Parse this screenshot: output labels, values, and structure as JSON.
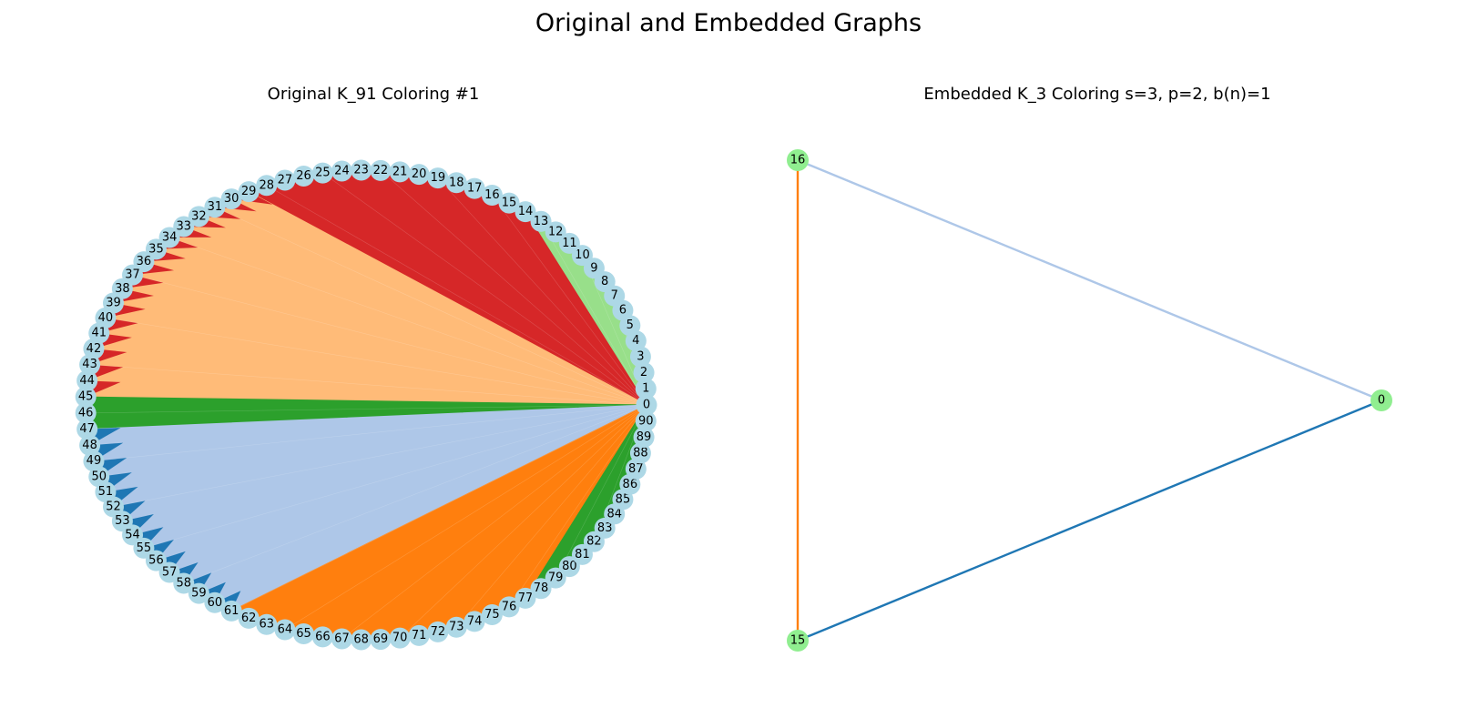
{
  "figure": {
    "title": "Original and Embedded Graphs"
  },
  "original": {
    "title": "Original K_91 Coloring #1",
    "node_count": 91,
    "node_color": "#add8e6",
    "color_blocks": [
      {
        "from": 0,
        "to": 14,
        "color": "#98df8a"
      },
      {
        "from": 14,
        "to": 29,
        "color": "#d62728"
      },
      {
        "from": 29,
        "to": 45,
        "color": "#ffbb78"
      },
      {
        "from": 45,
        "to": 47,
        "color": "#2ca02c"
      },
      {
        "from": 47,
        "to": 61,
        "color": "#aec7e8"
      },
      {
        "from": 61,
        "to": 77,
        "color": "#ff7f0e"
      },
      {
        "from": 77,
        "to": 91,
        "color": "#2ca02c"
      }
    ],
    "wedge_accent": {
      "from": 29,
      "to": 45,
      "color": "#d62728"
    },
    "wedge_accent_lower": {
      "from": 47,
      "to": 61,
      "color": "#1f77b4"
    }
  },
  "embedded": {
    "title": "Embedded K_3 Coloring s=3, p=2, b(n)=1",
    "node_color": "#90ee90",
    "nodes": [
      {
        "id": "16",
        "label": "16"
      },
      {
        "id": "15",
        "label": "15"
      },
      {
        "id": "0",
        "label": "0"
      }
    ],
    "edges": [
      {
        "source": "16",
        "target": "15",
        "color": "#ff7f0e"
      },
      {
        "source": "16",
        "target": "0",
        "color": "#aec7e8"
      },
      {
        "source": "15",
        "target": "0",
        "color": "#1f77b4"
      }
    ]
  }
}
